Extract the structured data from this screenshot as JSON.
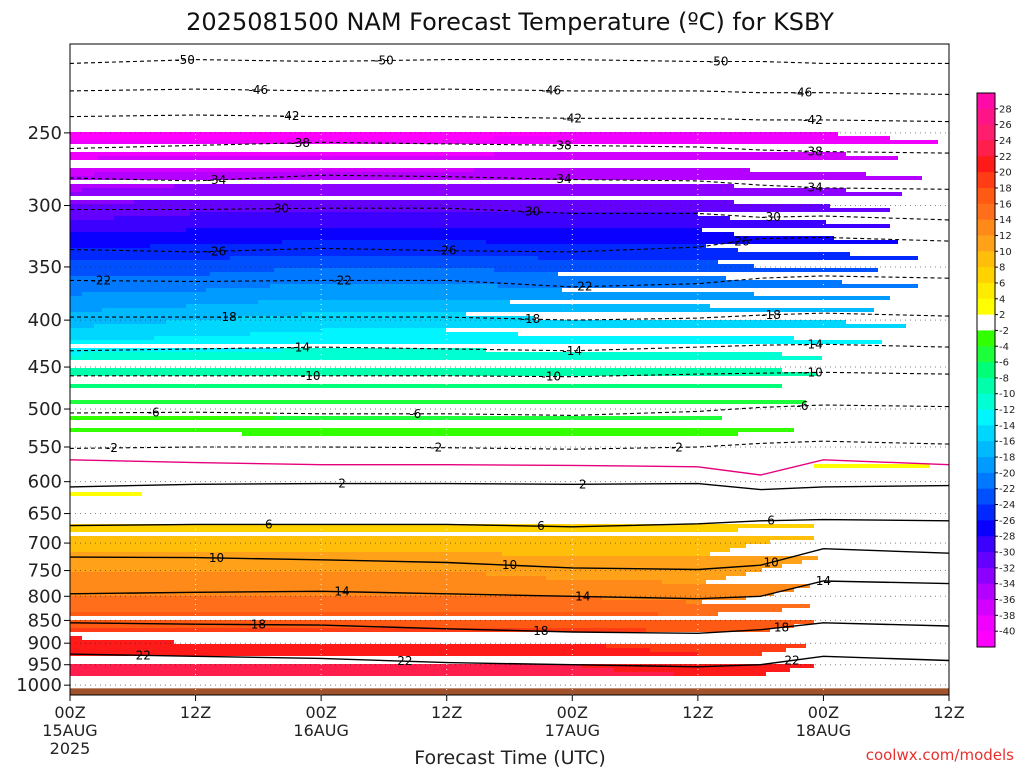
{
  "chart_data": {
    "type": "heatmap",
    "title": "2025081500 NAM Forecast Temperature (ºC) for KSBY",
    "xlabel": "Forecast Time (UTC)",
    "credit": "coolwx.com/models",
    "x_unit": "hours since 15AUG2025 00Z",
    "xlim": [
      0,
      84
    ],
    "x_ticks": [
      {
        "hour": 0,
        "lines": [
          "00Z",
          "15AUG",
          "2025"
        ]
      },
      {
        "hour": 12,
        "lines": [
          "12Z"
        ]
      },
      {
        "hour": 24,
        "lines": [
          "00Z",
          "16AUG"
        ]
      },
      {
        "hour": 36,
        "lines": [
          "12Z"
        ]
      },
      {
        "hour": 48,
        "lines": [
          "00Z",
          "17AUG"
        ]
      },
      {
        "hour": 60,
        "lines": [
          "12Z"
        ]
      },
      {
        "hour": 72,
        "lines": [
          "00Z",
          "18AUG"
        ]
      },
      {
        "hour": 84,
        "lines": [
          "12Z"
        ]
      }
    ],
    "y_unit": "hPa (log-pressure axis, inverted)",
    "ylim": [
      1025,
      200
    ],
    "y_ticks": [
      250,
      300,
      350,
      400,
      450,
      500,
      550,
      600,
      650,
      700,
      750,
      800,
      850,
      900,
      950,
      1000
    ],
    "grid": "dotted",
    "ground_level_hPa": 1008,
    "temperature_profile": {
      "x": [
        0,
        12,
        24,
        36,
        48,
        60,
        66,
        72,
        84
      ],
      "pressure": [
        200,
        250,
        300,
        350,
        400,
        450,
        500,
        550,
        580,
        600,
        650,
        700,
        750,
        800,
        850,
        900,
        950,
        1000,
        1008
      ],
      "temps": [
        [
          -56,
          -56,
          -56,
          -56,
          -56,
          -56,
          -56,
          -56,
          -56
        ],
        [
          -41,
          -41,
          -41,
          -41,
          -40,
          -40,
          -40,
          -40,
          -41
        ],
        [
          -32,
          -31,
          -31,
          -31,
          -31,
          -31,
          -32,
          -32,
          -33
        ],
        [
          -23,
          -23,
          -22,
          -22,
          -23,
          -23,
          -24,
          -24,
          -25
        ],
        [
          -17,
          -16,
          -15,
          -15,
          -16,
          -16,
          -16,
          -16,
          -17
        ],
        [
          -10,
          -10,
          -10,
          -10,
          -10,
          -10,
          -10,
          -11,
          -11
        ],
        [
          -5,
          -5,
          -5,
          -5,
          -5,
          -5,
          -5,
          -5,
          -5
        ],
        [
          0,
          0,
          -1,
          -1,
          -1,
          -1,
          0,
          1,
          1
        ],
        [
          1.5,
          1.5,
          1.6,
          1.6,
          1.6,
          1.6,
          1.8,
          2.2,
          2.1
        ],
        [
          2.5,
          3,
          3,
          3,
          3,
          3,
          2.8,
          3,
          3
        ],
        [
          6,
          6,
          6,
          6,
          6,
          6,
          6,
          6,
          6
        ],
        [
          9,
          9,
          9,
          9,
          9,
          9,
          10,
          11,
          11
        ],
        [
          12,
          12,
          12,
          12,
          11,
          11,
          12,
          13,
          13
        ],
        [
          14,
          14,
          14,
          14,
          14,
          13,
          14,
          15,
          15
        ],
        [
          17,
          17,
          17,
          17,
          17,
          17,
          17,
          18,
          18
        ],
        [
          21,
          20,
          20,
          20,
          20,
          19,
          19,
          20,
          20
        ],
        [
          22,
          22,
          22,
          22,
          22,
          21,
          21,
          22,
          22
        ],
        [
          23,
          23,
          23,
          23,
          23,
          23,
          23,
          24,
          23
        ],
        [
          23,
          23,
          23,
          23,
          23,
          23,
          23,
          24,
          23
        ]
      ]
    },
    "contours": [
      {
        "value": 2,
        "color": "#e6007e",
        "style": "solid",
        "pressure": [
          568,
          572,
          575,
          575,
          576,
          578,
          590,
          568,
          575
        ]
      },
      {
        "value": -50,
        "style": "dashed",
        "pressure": [
          210,
          208,
          209,
          208,
          208,
          209,
          209,
          210,
          210
        ],
        "labels": [
          {
            "text": "-50",
            "x": 11
          },
          {
            "text": "-50",
            "x": 30
          },
          {
            "text": "-50",
            "x": 62
          }
        ]
      },
      {
        "value": -46,
        "style": "dashed",
        "pressure": [
          225,
          224,
          225,
          224,
          225,
          225,
          226,
          226,
          227
        ],
        "labels": [
          {
            "text": "-46",
            "x": 18
          },
          {
            "text": "-46",
            "x": 46
          },
          {
            "text": "-46",
            "x": 70
          }
        ]
      },
      {
        "value": -42,
        "style": "dashed",
        "pressure": [
          240,
          239,
          240,
          240,
          241,
          241,
          242,
          242,
          243
        ],
        "labels": [
          {
            "text": "-42",
            "x": 21
          },
          {
            "text": "-42",
            "x": 48
          },
          {
            "text": "-42",
            "x": 71
          }
        ]
      },
      {
        "value": -38,
        "style": "dashed",
        "pressure": [
          260,
          258,
          256,
          257,
          258,
          259,
          261,
          262,
          263
        ],
        "labels": [
          {
            "text": "-38",
            "x": 22
          },
          {
            "text": "-38",
            "x": 47
          },
          {
            "text": "-38",
            "x": 71
          }
        ]
      },
      {
        "value": -34,
        "style": "dashed",
        "pressure": [
          280,
          282,
          278,
          279,
          281,
          282,
          285,
          287,
          288
        ],
        "labels": [
          {
            "text": "-34",
            "x": 14
          },
          {
            "text": "-34",
            "x": 47
          },
          {
            "text": "-34",
            "x": 71
          }
        ]
      },
      {
        "value": -30,
        "style": "dashed",
        "pressure": [
          303,
          303,
          302,
          302,
          306,
          306,
          309,
          308,
          311
        ],
        "labels": [
          {
            "text": "-30",
            "x": 20
          },
          {
            "text": "-30",
            "x": 44
          },
          {
            "text": "-30",
            "x": 67
          }
        ]
      },
      {
        "value": -26,
        "style": "dashed",
        "pressure": [
          335,
          337,
          334,
          336,
          337,
          333,
          326,
          325,
          328
        ],
        "labels": [
          {
            "text": "-26",
            "x": 14
          },
          {
            "text": "-26",
            "x": 36
          },
          {
            "text": "-26",
            "x": 64
          }
        ]
      },
      {
        "value": -22,
        "style": "dashed",
        "pressure": [
          362,
          363,
          362,
          362,
          368,
          365,
          360,
          358,
          360
        ],
        "labels": [
          {
            "text": "-22",
            "x": 3
          },
          {
            "text": "-22",
            "x": 26
          },
          {
            "text": "-22",
            "x": 49
          }
        ]
      },
      {
        "value": -18,
        "style": "dashed",
        "pressure": [
          397,
          397,
          397,
          397,
          400,
          398,
          395,
          393,
          396
        ],
        "labels": [
          {
            "text": "-18",
            "x": 15
          },
          {
            "text": "-18",
            "x": 44
          },
          {
            "text": "-18",
            "x": 67
          }
        ]
      },
      {
        "value": -14,
        "style": "dashed",
        "pressure": [
          432,
          430,
          428,
          430,
          432,
          428,
          426,
          425,
          428
        ],
        "labels": [
          {
            "text": "-14",
            "x": 22
          },
          {
            "text": "-14",
            "x": 48
          },
          {
            "text": "-14",
            "x": 71
          }
        ]
      },
      {
        "value": -10,
        "style": "dashed",
        "pressure": [
          460,
          460,
          460,
          460,
          461,
          458,
          457,
          456,
          458
        ],
        "labels": [
          {
            "text": "-10",
            "x": 23
          },
          {
            "text": "-10",
            "x": 46
          },
          {
            "text": "-10",
            "x": 71
          }
        ]
      },
      {
        "value": -6,
        "style": "dashed",
        "pressure": [
          505,
          504,
          506,
          506,
          508,
          503,
          498,
          495,
          497
        ],
        "labels": [
          {
            "text": "-6",
            "x": 8
          },
          {
            "text": "-6",
            "x": 33
          },
          {
            "text": "-6",
            "x": 70
          }
        ]
      },
      {
        "value": -2,
        "style": "dashed",
        "pressure": [
          552,
          550,
          550,
          551,
          553,
          550,
          545,
          542,
          546
        ],
        "labels": [
          {
            "text": "-2",
            "x": 4
          },
          {
            "text": "-2",
            "x": 35
          },
          {
            "text": "-2",
            "x": 58
          }
        ]
      },
      {
        "value": 2,
        "color": "#000000",
        "style": "solid",
        "pressure": [
          608,
          604,
          603,
          603,
          604,
          603,
          612,
          608,
          606
        ],
        "labels": [
          {
            "text": "2",
            "x": 26
          },
          {
            "text": "2",
            "x": 49
          }
        ]
      },
      {
        "value": 6,
        "color": "#000000",
        "style": "solid",
        "pressure": [
          670,
          668,
          668,
          668,
          672,
          667,
          662,
          660,
          662
        ],
        "labels": [
          {
            "text": "6",
            "x": 19
          },
          {
            "text": "6",
            "x": 45
          },
          {
            "text": "6",
            "x": 67
          }
        ]
      },
      {
        "value": 10,
        "color": "#000000",
        "style": "solid",
        "pressure": [
          725,
          726,
          730,
          735,
          745,
          748,
          740,
          710,
          718
        ],
        "labels": [
          {
            "text": "10",
            "x": 14
          },
          {
            "text": "10",
            "x": 42
          },
          {
            "text": "10",
            "x": 67
          }
        ]
      },
      {
        "value": 14,
        "color": "#000000",
        "style": "solid",
        "pressure": [
          795,
          792,
          790,
          795,
          800,
          805,
          800,
          770,
          775
        ],
        "labels": [
          {
            "text": "14",
            "x": 26
          },
          {
            "text": "14",
            "x": 49
          },
          {
            "text": "14",
            "x": 72
          }
        ]
      },
      {
        "value": 18,
        "color": "#000000",
        "style": "solid",
        "pressure": [
          855,
          858,
          860,
          868,
          875,
          878,
          870,
          855,
          862
        ],
        "labels": [
          {
            "text": "18",
            "x": 18
          },
          {
            "text": "18",
            "x": 45
          },
          {
            "text": "18",
            "x": 68
          }
        ]
      },
      {
        "value": 22,
        "color": "#000000",
        "style": "solid",
        "pressure": [
          925,
          930,
          935,
          945,
          950,
          955,
          950,
          930,
          940
        ],
        "labels": [
          {
            "text": "22",
            "x": 7
          },
          {
            "text": "22",
            "x": 32
          },
          {
            "text": "22",
            "x": 69
          }
        ]
      }
    ],
    "colorbar": {
      "labels": [
        "28",
        "26",
        "24",
        "22",
        "20",
        "18",
        "16",
        "14",
        "12",
        "10",
        "8",
        "6",
        "4",
        "2",
        "-2",
        "-4",
        "-6",
        "-8",
        "-10",
        "-12",
        "-14",
        "-16",
        "-18",
        "-20",
        "-22",
        "-24",
        "-26",
        "-28",
        "-30",
        "-32",
        "-34",
        "-36",
        "-38",
        "-40"
      ],
      "bands": [
        {
          "min": 28,
          "max": 30,
          "color": "#ff0aa8"
        },
        {
          "min": 26,
          "max": 28,
          "color": "#ff1488"
        },
        {
          "min": 24,
          "max": 26,
          "color": "#ff1e6e"
        },
        {
          "min": 22,
          "max": 24,
          "color": "#ff1e4c"
        },
        {
          "min": 20,
          "max": 22,
          "color": "#ff1a1a"
        },
        {
          "min": 18,
          "max": 20,
          "color": "#ff3c14"
        },
        {
          "min": 16,
          "max": 18,
          "color": "#ff5a14"
        },
        {
          "min": 14,
          "max": 16,
          "color": "#ff6e1a"
        },
        {
          "min": 12,
          "max": 14,
          "color": "#ff8a1a"
        },
        {
          "min": 10,
          "max": 12,
          "color": "#ffa21a"
        },
        {
          "min": 8,
          "max": 10,
          "color": "#ffbe0a"
        },
        {
          "min": 6,
          "max": 8,
          "color": "#ffd200"
        },
        {
          "min": 4,
          "max": 6,
          "color": "#ffeb00"
        },
        {
          "min": 2,
          "max": 4,
          "color": "#ffff00"
        },
        {
          "min": -2,
          "max": 2,
          "color": "#ffffff"
        },
        {
          "min": -4,
          "max": -2,
          "color": "#32ff00"
        },
        {
          "min": -6,
          "max": -4,
          "color": "#1eff3c"
        },
        {
          "min": -8,
          "max": -6,
          "color": "#00ff78"
        },
        {
          "min": -10,
          "max": -8,
          "color": "#00ffaa"
        },
        {
          "min": -12,
          "max": -10,
          "color": "#00ffd2"
        },
        {
          "min": -14,
          "max": -12,
          "color": "#00f5ff"
        },
        {
          "min": -16,
          "max": -14,
          "color": "#00d7ff"
        },
        {
          "min": -18,
          "max": -16,
          "color": "#00b9ff"
        },
        {
          "min": -20,
          "max": -18,
          "color": "#009bff"
        },
        {
          "min": -22,
          "max": -20,
          "color": "#0078ff"
        },
        {
          "min": -24,
          "max": -22,
          "color": "#0050ff"
        },
        {
          "min": -26,
          "max": -24,
          "color": "#0028ff"
        },
        {
          "min": -28,
          "max": -26,
          "color": "#0a00ff"
        },
        {
          "min": -30,
          "max": -28,
          "color": "#3c00ff"
        },
        {
          "min": -32,
          "max": -30,
          "color": "#6400ff"
        },
        {
          "min": -34,
          "max": -32,
          "color": "#8c00ff"
        },
        {
          "min": -36,
          "max": -34,
          "color": "#b400ff"
        },
        {
          "min": -38,
          "max": -36,
          "color": "#d200ff"
        },
        {
          "min": -40,
          "max": -38,
          "color": "#f000ff"
        },
        {
          "min": -80,
          "max": -40,
          "color": "#ff00ff"
        }
      ]
    },
    "ground_color": "#a0522d",
    "grid_color": "#ffffff"
  }
}
